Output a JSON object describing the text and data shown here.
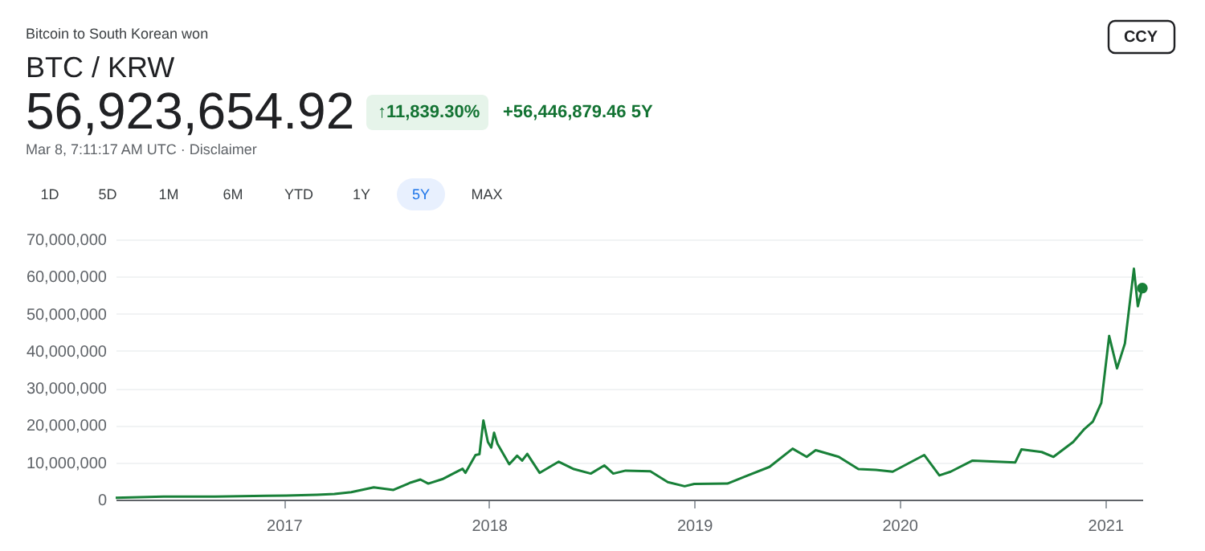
{
  "chart_data": {
    "type": "line",
    "title": "BTC / KRW",
    "subtitle": "Bitcoin to South Korean won",
    "annotations": [
      "56,923,654.92",
      "↑11,839.30%",
      "+56,446,879.46 5Y",
      "Mar 8, 7:11:17 AM UTC · Disclaimer",
      "1D",
      "5D",
      "1M",
      "6M",
      "YTD",
      "1Y",
      "5Y",
      "MAX",
      "CCY"
    ],
    "x": [
      "2016-03-08",
      "2016-06-01",
      "2016-09-01",
      "2016-12-01",
      "2017-01-05",
      "2017-03-01",
      "2017-04-01",
      "2017-05-01",
      "2017-06-10",
      "2017-07-15",
      "2017-08-15",
      "2017-09-01",
      "2017-09-15",
      "2017-10-10",
      "2017-11-01",
      "2017-11-15",
      "2017-11-20",
      "2017-12-08",
      "2017-12-15",
      "2017-12-22",
      "2017-12-30",
      "2018-01-05",
      "2018-01-10",
      "2018-01-16",
      "2018-02-06",
      "2018-02-20",
      "2018-03-01",
      "2018-03-10",
      "2018-04-01",
      "2018-05-05",
      "2018-06-01",
      "2018-07-01",
      "2018-07-25",
      "2018-08-10",
      "2018-09-01",
      "2018-10-15",
      "2018-11-15",
      "2018-12-15",
      "2019-01-01",
      "2019-03-01",
      "2019-04-01",
      "2019-05-15",
      "2019-06-25",
      "2019-07-20",
      "2019-08-05",
      "2019-09-15",
      "2019-10-20",
      "2019-11-20",
      "2019-12-20",
      "2020-02-14",
      "2020-03-12",
      "2020-04-01",
      "2020-05-10",
      "2020-07-25",
      "2020-08-05",
      "2020-09-10",
      "2020-10-01",
      "2020-11-05",
      "2020-11-25",
      "2020-12-10",
      "2020-12-25",
      "2021-01-08",
      "2021-01-22",
      "2021-02-05",
      "2021-02-21",
      "2021-02-28",
      "2021-03-08"
    ],
    "series": [
      {
        "color": "#188038",
        "values": [
          500000,
          800000,
          800000,
          1000000,
          1100000,
          1300000,
          1500000,
          2000000,
          3300000,
          2600000,
          4600000,
          5400000,
          4300000,
          5500000,
          7200000,
          8300000,
          7200000,
          12000000,
          12200000,
          21300000,
          15500000,
          14000000,
          18000000,
          15000000,
          9500000,
          11800000,
          10500000,
          12300000,
          7200000,
          10200000,
          8200000,
          7000000,
          9200000,
          7000000,
          7800000,
          7600000,
          4700000,
          3600000,
          4200000,
          4300000,
          6200000,
          8800000,
          13700000,
          11500000,
          13300000,
          11500000,
          8200000,
          8000000,
          7500000,
          12000000,
          6500000,
          7500000,
          10500000,
          10000000,
          13500000,
          12800000,
          11500000,
          15500000,
          19000000,
          21000000,
          26000000,
          44000000,
          35300000,
          42000000,
          62100000,
          52000000,
          56900000
        ]
      }
    ],
    "xlim": [
      "2016-03-08",
      "2021-03-08"
    ],
    "xticks": [
      {
        "value": "2017",
        "label": "2017"
      },
      {
        "value": "2018",
        "label": "2018"
      },
      {
        "value": "2019",
        "label": "2019"
      },
      {
        "value": "2020",
        "label": "2020"
      },
      {
        "value": "2021",
        "label": "2021"
      }
    ],
    "ylim": [
      0,
      70000000
    ],
    "yticks": [
      0,
      {
        "value": 10000000,
        "label": "10,000,000"
      },
      {
        "value": 20000000,
        "label": "20,000,000"
      },
      {
        "value": 30000000,
        "label": "30,000,000"
      },
      {
        "value": 40000000,
        "label": "40,000,000"
      },
      {
        "value": 50000000,
        "label": "50,000,000"
      },
      {
        "value": 60000000,
        "label": "60,000,000"
      },
      {
        "value": 70000000,
        "label": "70,000,000"
      }
    ],
    "grid": "y",
    "marker": "none",
    "line_style": "solid"
  }
}
